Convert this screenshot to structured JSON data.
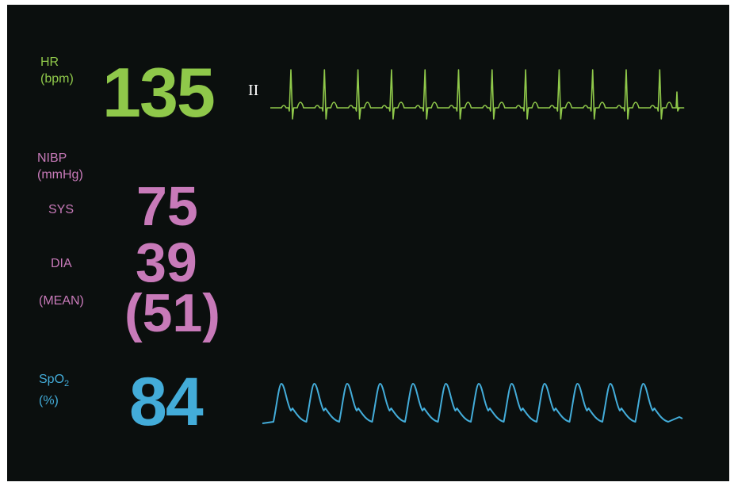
{
  "hr": {
    "label_line1": "HR",
    "label_line2": "(bpm)",
    "value": "135",
    "lead": "II",
    "color": "#8fc84a"
  },
  "nibp": {
    "label_line1": "NIBP",
    "label_line2": "(mmHg)",
    "sys_label": "SYS",
    "sys_value": "75",
    "dia_label": "DIA",
    "dia_value": "39",
    "mean_label": "(MEAN)",
    "mean_value": "(51)",
    "color": "#c87ab9"
  },
  "spo2": {
    "label_main": "SpO",
    "label_sub": "2",
    "label_line2": "(%)",
    "value": "84",
    "color": "#43acd9"
  }
}
